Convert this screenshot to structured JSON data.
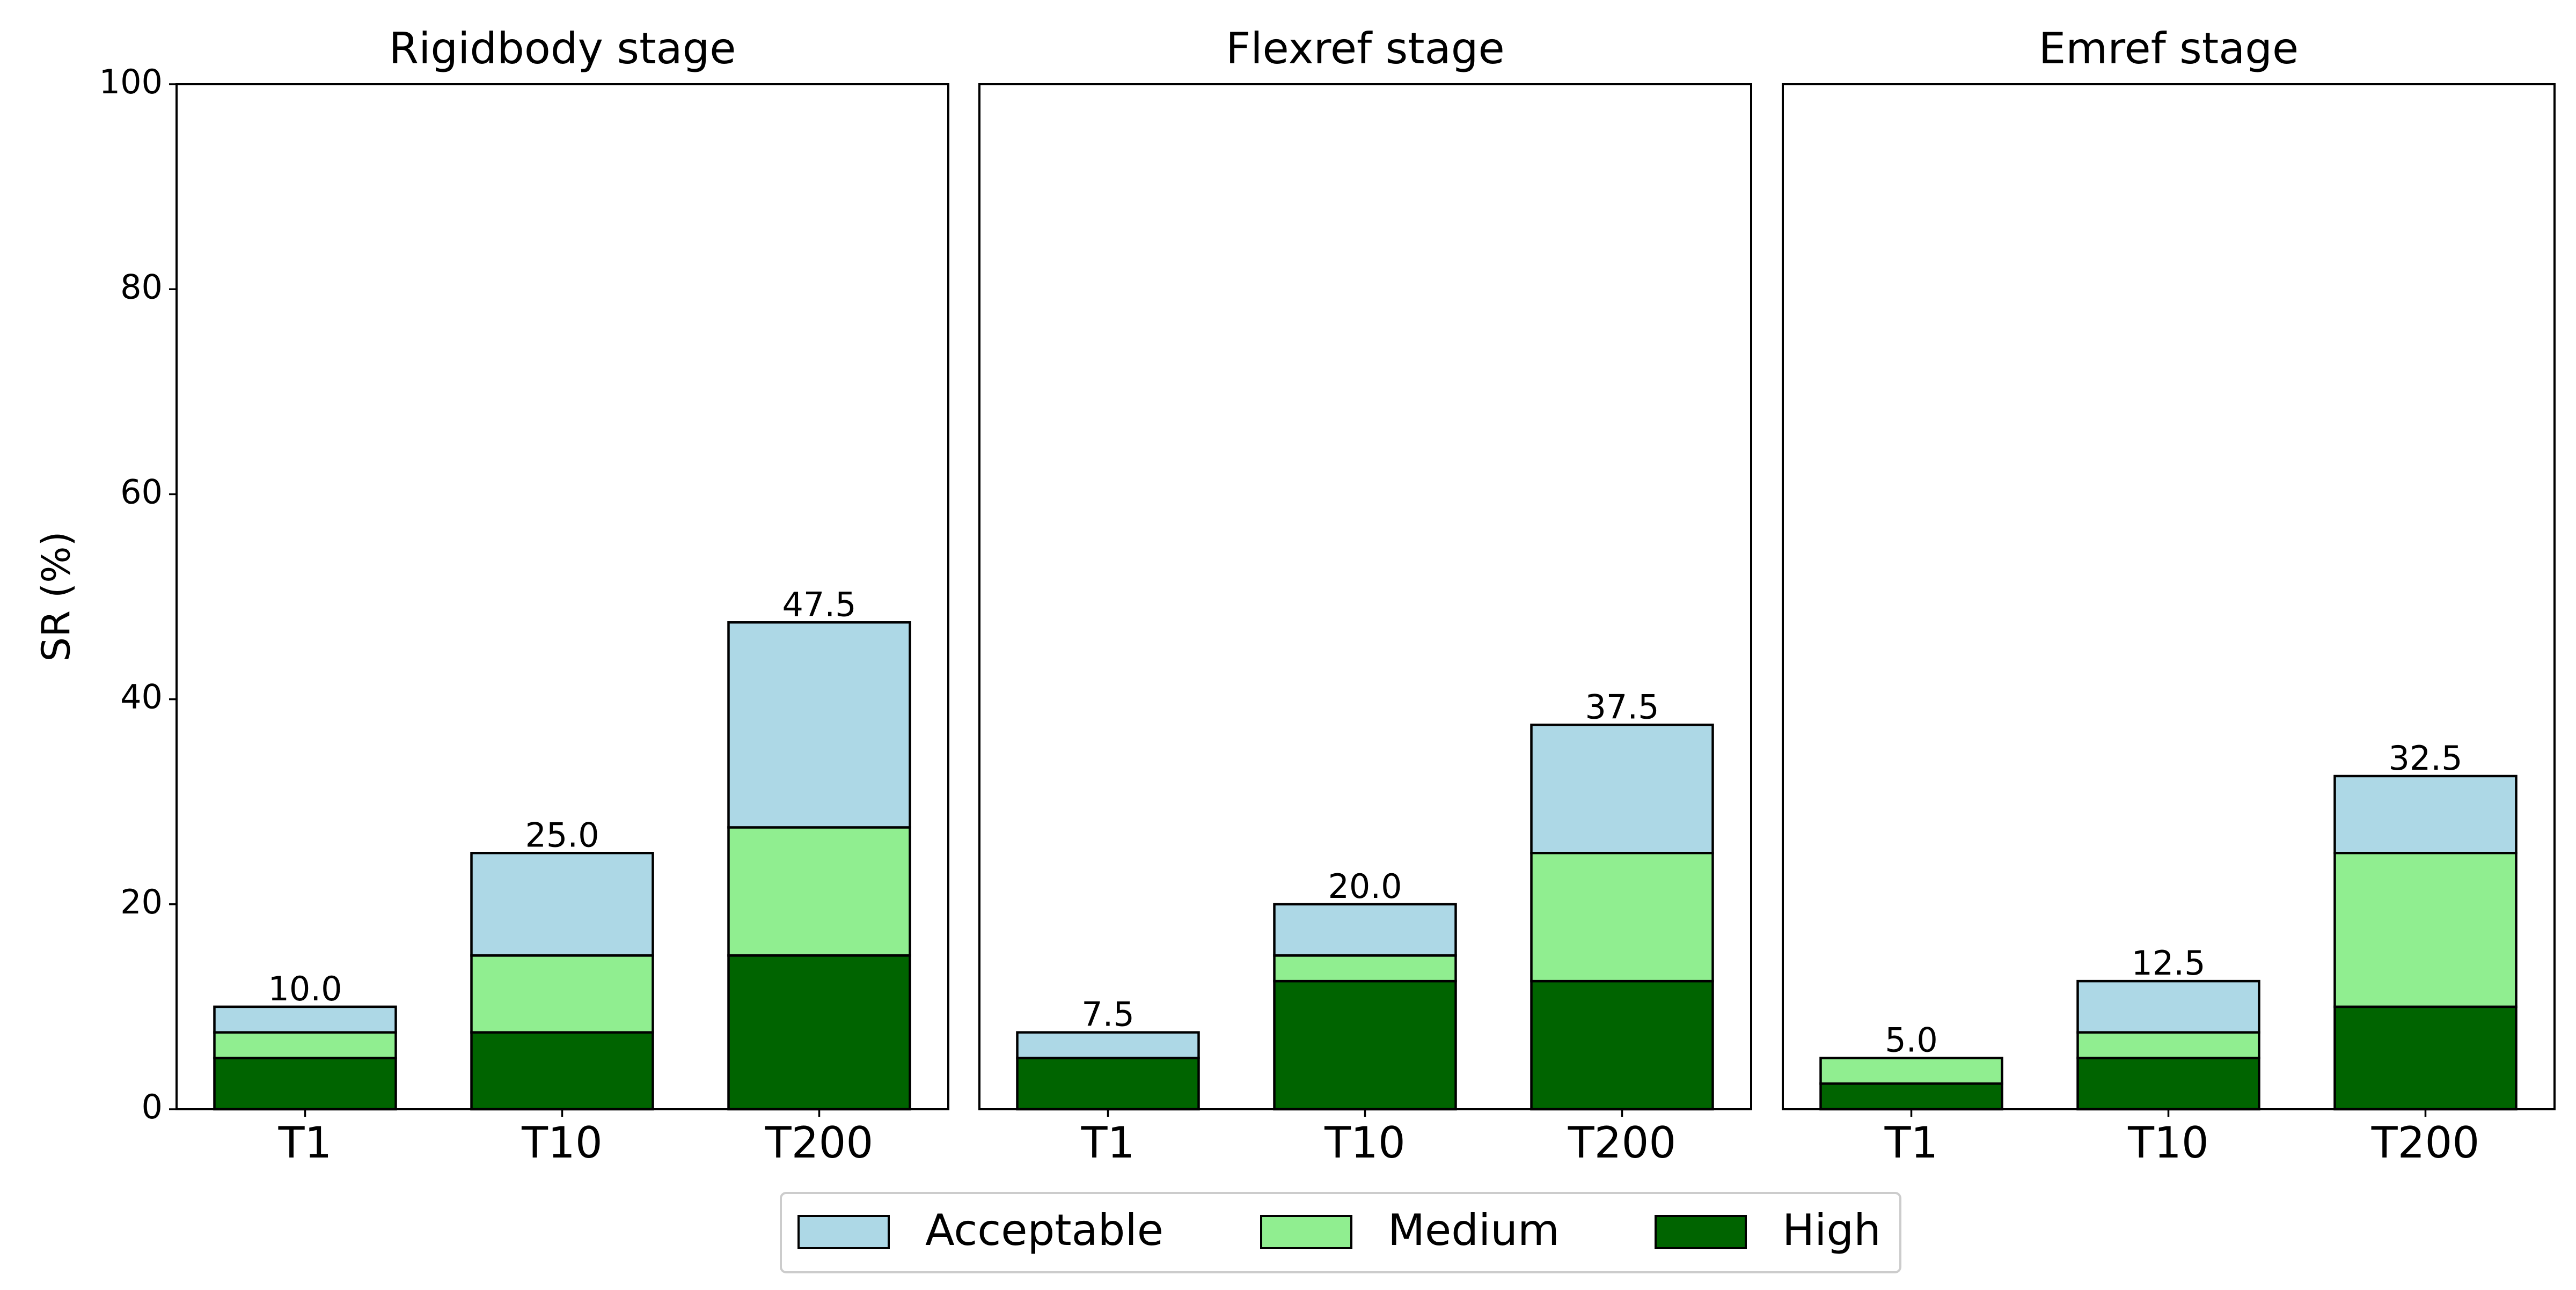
{
  "chart_data": {
    "type": "bar",
    "stacked": true,
    "ylabel": "SR (%)",
    "ylim": [
      0,
      100
    ],
    "yticks": [
      0,
      20,
      40,
      60,
      80,
      100
    ],
    "categories": [
      "T1",
      "T10",
      "T200"
    ],
    "legend": {
      "placement": "bottom-center",
      "entries": [
        "Acceptable",
        "Medium",
        "High"
      ]
    },
    "colors": {
      "High": "#006400",
      "Medium": "#90ee90",
      "Acceptable": "#add8e6"
    },
    "panels": [
      {
        "title": "Rigidbody stage",
        "series": [
          {
            "name": "High",
            "values": [
              5.0,
              7.5,
              15.0
            ]
          },
          {
            "name": "Medium",
            "values": [
              2.5,
              7.5,
              12.5
            ]
          },
          {
            "name": "Acceptable",
            "values": [
              2.5,
              10.0,
              20.0
            ]
          }
        ],
        "totals": [
          "10.0",
          "25.0",
          "47.5"
        ]
      },
      {
        "title": "Flexref stage",
        "series": [
          {
            "name": "High",
            "values": [
              5.0,
              12.5,
              12.5
            ]
          },
          {
            "name": "Medium",
            "values": [
              0.0,
              2.5,
              12.5
            ]
          },
          {
            "name": "Acceptable",
            "values": [
              2.5,
              5.0,
              12.5
            ]
          }
        ],
        "totals": [
          "7.5",
          "20.0",
          "37.5"
        ]
      },
      {
        "title": "Emref stage",
        "series": [
          {
            "name": "High",
            "values": [
              2.5,
              5.0,
              10.0
            ]
          },
          {
            "name": "Medium",
            "values": [
              2.5,
              2.5,
              15.0
            ]
          },
          {
            "name": "Acceptable",
            "values": [
              0.0,
              5.0,
              7.5
            ]
          }
        ],
        "totals": [
          "5.0",
          "12.5",
          "32.5"
        ]
      }
    ]
  }
}
